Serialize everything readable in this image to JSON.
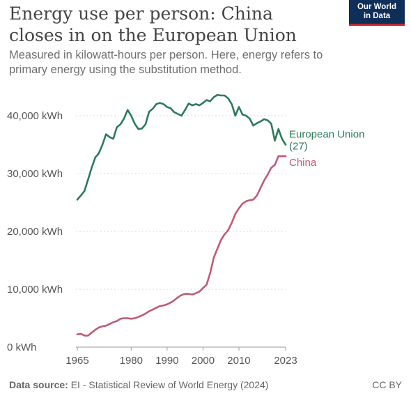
{
  "header": {
    "title_line1": "Energy use per person: China",
    "title_line2": "closes in on the European Union",
    "subtitle_line1": "Measured in kilowatt-hours per person. Here, energy refers to",
    "subtitle_line2": "primary energy using the substitution method.",
    "logo_line1": "Our World",
    "logo_line2": "in Data"
  },
  "footer": {
    "source_label": "Data source:",
    "source_text": " EI - Statistical Review of World Energy (2024)",
    "license": "CC BY"
  },
  "colors": {
    "eu": "#2b7a5a",
    "china": "#c05a73",
    "grid": "#d9d9d9",
    "axis_text": "#555555",
    "logo_bg": "#0f2e58",
    "logo_accent": "#c0272d"
  },
  "chart_data": {
    "type": "line",
    "title": "Energy use per person: China closes in on the European Union",
    "ylim": [
      0,
      40000
    ],
    "xlim": [
      1965,
      2023
    ],
    "y_ticks": [
      0,
      10000,
      20000,
      30000,
      40000
    ],
    "y_tick_labels": [
      "0 kWh",
      "10,000 kWh",
      "20,000 kWh",
      "30,000 kWh",
      "40,000 kWh"
    ],
    "x_ticks": [
      1965,
      1980,
      1990,
      2000,
      2010,
      2023
    ],
    "x_tick_labels": [
      "1965",
      "1980",
      "1990",
      "2000",
      "2010",
      "2023"
    ],
    "grid": "horizontal dotted",
    "series": [
      {
        "name": "European Union (27)",
        "label_lines": [
          "European Union",
          "(27)"
        ],
        "color": "#2b7a5a",
        "x": [
          1965,
          1966,
          1967,
          1968,
          1969,
          1970,
          1971,
          1972,
          1973,
          1974,
          1975,
          1976,
          1977,
          1978,
          1979,
          1980,
          1981,
          1982,
          1983,
          1984,
          1985,
          1986,
          1987,
          1988,
          1989,
          1990,
          1991,
          1992,
          1993,
          1994,
          1995,
          1996,
          1997,
          1998,
          1999,
          2000,
          2001,
          2002,
          2003,
          2004,
          2005,
          2006,
          2007,
          2008,
          2009,
          2010,
          2011,
          2012,
          2013,
          2014,
          2015,
          2016,
          2017,
          2018,
          2019,
          2020,
          2021,
          2022,
          2023
        ],
        "values": [
          25500,
          26200,
          27000,
          29000,
          31000,
          32800,
          33500,
          35000,
          36800,
          36300,
          36000,
          38000,
          38500,
          39500,
          41000,
          40000,
          38600,
          37700,
          37800,
          38500,
          40700,
          41200,
          42000,
          42200,
          42000,
          41500,
          41300,
          40600,
          40300,
          40000,
          41000,
          42100,
          41800,
          42000,
          41800,
          42200,
          42700,
          42500,
          43200,
          43600,
          43500,
          43500,
          43000,
          42000,
          40000,
          41500,
          40200,
          40000,
          39500,
          38300,
          38700,
          39000,
          39400,
          39200,
          38600,
          35700,
          37700,
          36000,
          35000
        ]
      },
      {
        "name": "China",
        "label_lines": [
          "China"
        ],
        "color": "#c05a73",
        "x": [
          1965,
          1966,
          1967,
          1968,
          1969,
          1970,
          1971,
          1972,
          1973,
          1974,
          1975,
          1976,
          1977,
          1978,
          1979,
          1980,
          1981,
          1982,
          1983,
          1984,
          1985,
          1986,
          1987,
          1988,
          1989,
          1990,
          1991,
          1992,
          1993,
          1994,
          1995,
          1996,
          1997,
          1998,
          1999,
          2000,
          2001,
          2002,
          2003,
          2004,
          2005,
          2006,
          2007,
          2008,
          2009,
          2010,
          2011,
          2012,
          2013,
          2014,
          2015,
          2016,
          2017,
          2018,
          2019,
          2020,
          2021,
          2022,
          2023
        ],
        "values": [
          2200,
          2300,
          2000,
          2000,
          2500,
          3000,
          3400,
          3600,
          3700,
          4000,
          4300,
          4500,
          4900,
          5000,
          5000,
          4900,
          5000,
          5200,
          5500,
          5800,
          6200,
          6500,
          6800,
          7100,
          7200,
          7400,
          7700,
          8100,
          8600,
          9000,
          9200,
          9200,
          9100,
          9300,
          9600,
          10200,
          10800,
          12800,
          15500,
          17000,
          18500,
          19500,
          20200,
          21500,
          23000,
          24000,
          24800,
          25200,
          25400,
          25500,
          26200,
          27500,
          28800,
          29800,
          31000,
          31500,
          33000,
          33000,
          33000
        ]
      }
    ]
  }
}
